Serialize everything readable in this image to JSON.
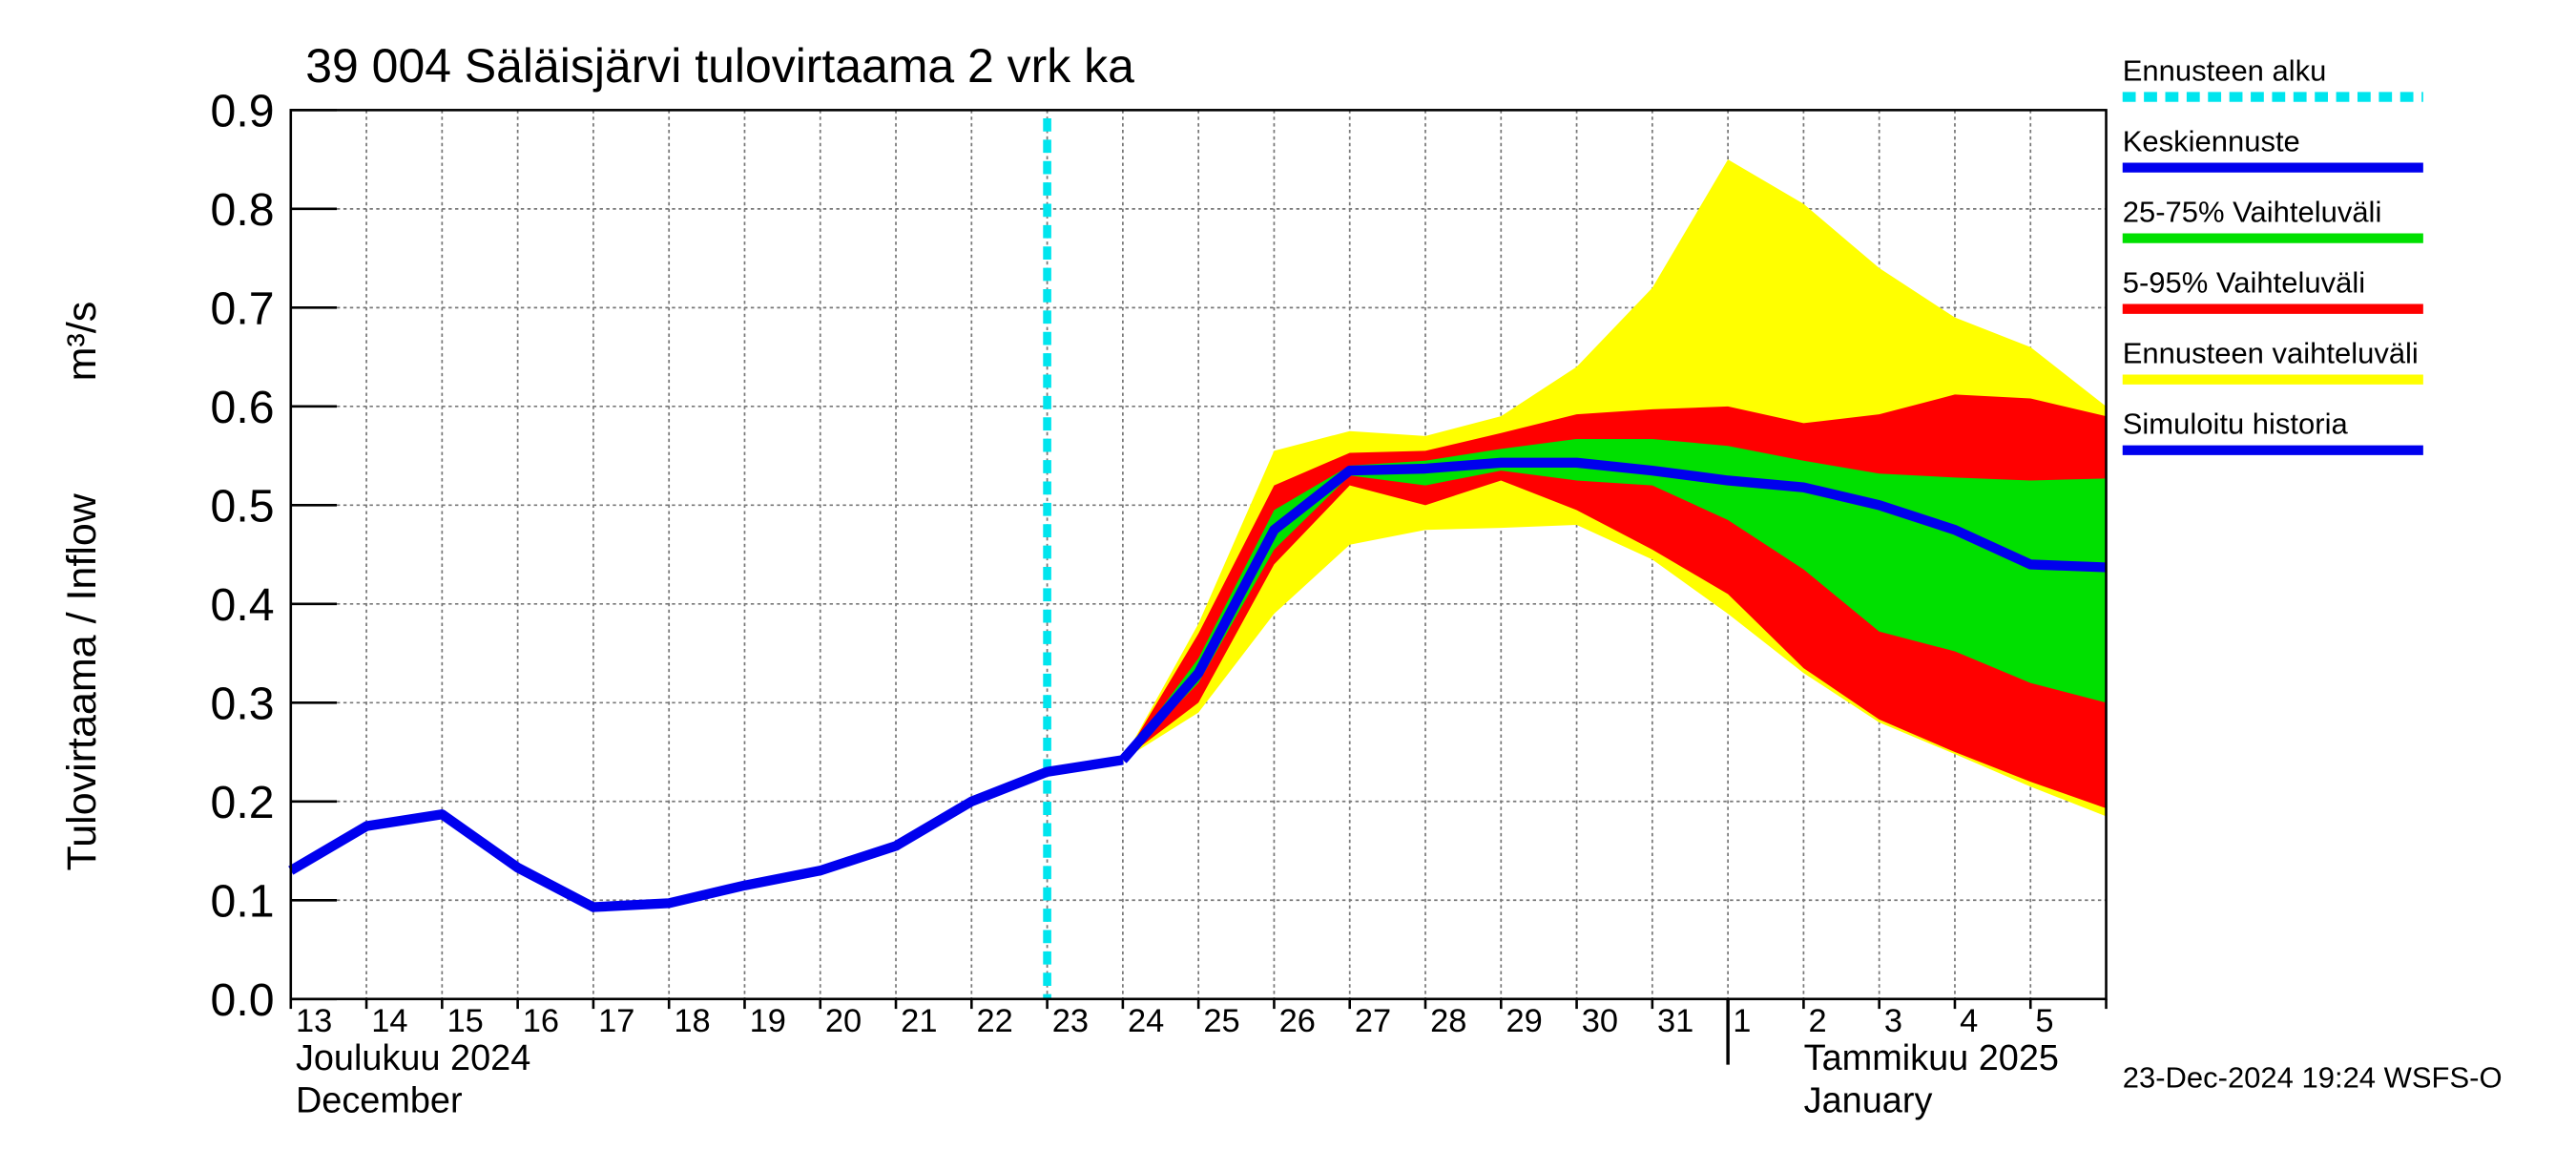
{
  "chart_data": {
    "type": "line",
    "title": "39 004 Säläisjärvi tulovirtaama 2 vrk ka",
    "y_label": "Tulovirtaama / Inflow",
    "y_unit": "m³/s",
    "month_labels": [
      "Joulukuu  2024",
      "December",
      "Tammikuu  2025",
      "January"
    ],
    "footer": "23-Dec-2024 19:24 WSFS-O",
    "categories": [
      "13",
      "14",
      "15",
      "16",
      "17",
      "18",
      "19",
      "20",
      "21",
      "22",
      "23",
      "24",
      "25",
      "26",
      "27",
      "28",
      "29",
      "30",
      "31",
      "1",
      "2",
      "3",
      "4",
      "5",
      null
    ],
    "forecast_start_label": "Ennusteen alku",
    "forecast_start_x": "23",
    "forecast_start_color": "#00e5ee",
    "ylim": [
      0,
      0.9
    ],
    "yticks": [
      {
        "value": 0,
        "label": "0.0"
      },
      0.1,
      0.2,
      0.3,
      0.4,
      0.5,
      0.6,
      0.7,
      0.8,
      0.9
    ],
    "grid": true,
    "series": [
      {
        "name": "Keskiennuste",
        "color": "#0000ee",
        "kind": "line",
        "values": [
          null,
          null,
          null,
          null,
          null,
          null,
          null,
          null,
          null,
          null,
          null,
          0.242,
          0.33,
          0.475,
          0.535,
          0.537,
          0.543,
          0.543,
          0.535,
          0.525,
          0.518,
          0.5,
          0.475,
          0.44,
          0.437
        ]
      },
      {
        "name": "25-75% Vaihteluväli",
        "color": "#00e000",
        "kind": "band",
        "values": [
          null,
          null,
          null,
          null,
          null,
          null,
          null,
          null,
          null,
          null,
          null,
          0.242,
          0.345,
          0.495,
          0.54,
          0.545,
          0.557,
          0.567,
          0.567,
          0.56,
          0.545,
          0.532,
          0.528,
          0.525,
          0.527
        ],
        "low": [
          null,
          null,
          null,
          null,
          null,
          null,
          null,
          null,
          null,
          null,
          null,
          0.242,
          0.32,
          0.455,
          0.53,
          0.52,
          0.535,
          0.525,
          0.52,
          0.485,
          0.435,
          0.372,
          0.352,
          0.32,
          0.3
        ]
      },
      {
        "name": "5-95% Vaihteluväli",
        "color": "#ff0000",
        "kind": "band",
        "values": [
          null,
          null,
          null,
          null,
          null,
          null,
          null,
          null,
          null,
          null,
          null,
          0.242,
          0.37,
          0.52,
          0.553,
          0.555,
          0.573,
          0.592,
          0.597,
          0.6,
          0.583,
          0.592,
          0.612,
          0.608,
          0.59
        ],
        "low": [
          null,
          null,
          null,
          null,
          null,
          null,
          null,
          null,
          null,
          null,
          null,
          0.242,
          0.3,
          0.44,
          0.52,
          0.5,
          0.525,
          0.495,
          0.455,
          0.41,
          0.335,
          0.283,
          0.25,
          0.22,
          0.193
        ]
      },
      {
        "name": "Ennusteen vaihteluväli",
        "color": "#ffff00",
        "kind": "band",
        "values": [
          null,
          null,
          null,
          null,
          null,
          null,
          null,
          null,
          null,
          null,
          null,
          0.242,
          0.38,
          0.555,
          0.575,
          0.57,
          0.59,
          0.64,
          0.72,
          0.85,
          0.805,
          0.74,
          0.69,
          0.66,
          0.6
        ],
        "low": [
          null,
          null,
          null,
          null,
          null,
          null,
          null,
          null,
          null,
          null,
          null,
          0.242,
          0.29,
          0.39,
          0.46,
          0.475,
          0.477,
          0.48,
          0.445,
          0.39,
          0.33,
          0.28,
          0.248,
          0.215,
          0.185
        ]
      },
      {
        "name": "Simuloitu historia",
        "color": "#0000ee",
        "kind": "line",
        "values": [
          0.13,
          0.175,
          0.187,
          0.133,
          0.093,
          0.097,
          0.115,
          0.13,
          0.155,
          0.2,
          0.23,
          0.242,
          null,
          null,
          null,
          null,
          null,
          null,
          null,
          null,
          null,
          null,
          null,
          null,
          null
        ]
      }
    ]
  }
}
